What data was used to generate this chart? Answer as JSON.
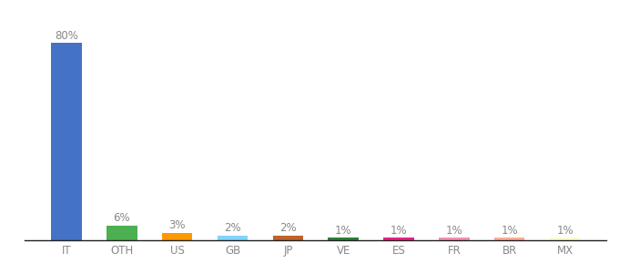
{
  "categories": [
    "IT",
    "OTH",
    "US",
    "GB",
    "JP",
    "VE",
    "ES",
    "FR",
    "BR",
    "MX"
  ],
  "values": [
    80,
    6,
    3,
    2,
    2,
    1,
    1,
    1,
    1,
    1
  ],
  "colors": [
    "#4472c4",
    "#4caf50",
    "#ff9800",
    "#81d4fa",
    "#c0622a",
    "#2e7d32",
    "#e91e8c",
    "#f48fb1",
    "#ffab91",
    "#ffffcc"
  ],
  "ylim": [
    0,
    92
  ],
  "bar_width": 0.55,
  "label_fontsize": 8.5,
  "tick_fontsize": 8.5,
  "background_color": "#ffffff",
  "label_color": "#888888",
  "tick_color": "#888888",
  "spine_color": "#222222"
}
